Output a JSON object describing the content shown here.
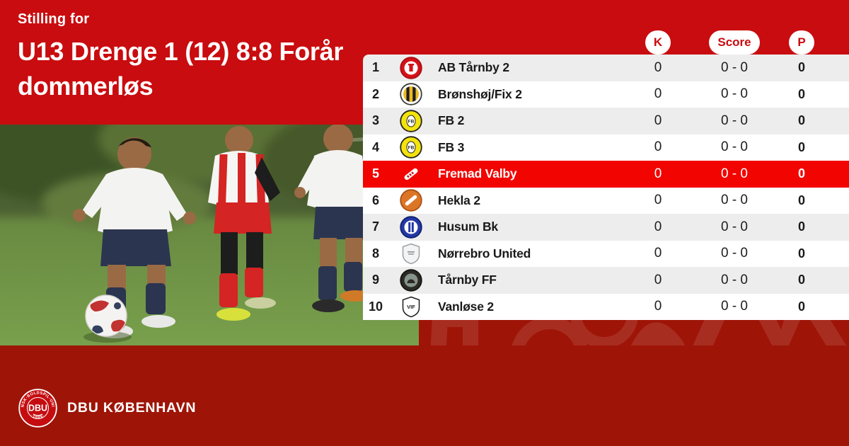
{
  "header": {
    "kicker": "Stilling for",
    "title_line1": "U13 Drenge 1 (12) 8:8 Forår",
    "title_line2": "dommerløs"
  },
  "colors": {
    "brand_red": "#c90c0f",
    "highlight_red": "#f20400",
    "dark_red": "#9e1507",
    "row_alt_gray": "#ededee",
    "pill_text_red": "#c90c0f"
  },
  "standings": {
    "columns": [
      {
        "key": "k",
        "label": "K"
      },
      {
        "key": "score",
        "label": "Score"
      },
      {
        "key": "p",
        "label": "P"
      }
    ],
    "rows": [
      {
        "position": "1",
        "team": "AB Tårnby 2",
        "k": "0",
        "score": "0 - 0",
        "p": "0",
        "highlighted": false,
        "logo": {
          "icon": "ab-taarnby-crest",
          "kind": "circle",
          "bg": "#d41219",
          "ring": "#a80d12",
          "inner": "#ffffff",
          "glyph": "castle",
          "glyphColor": "#d41219"
        }
      },
      {
        "position": "2",
        "team": "Brønshøj/Fix 2",
        "k": "0",
        "score": "0 - 0",
        "p": "0",
        "highlighted": false,
        "logo": {
          "icon": "broenshoej-crest",
          "kind": "stripes",
          "bg": "#ffffff",
          "ring": "#3a3a38",
          "c1": "#efb91e",
          "c2": "#1d1d1b"
        }
      },
      {
        "position": "3",
        "team": "FB 2",
        "k": "0",
        "score": "0 - 0",
        "p": "0",
        "highlighted": false,
        "logo": {
          "icon": "fb-crest",
          "kind": "circle",
          "bg": "#f2e30c",
          "ring": "#26231c",
          "glyph": "oval",
          "text": "FB",
          "textColor": "#26231c"
        }
      },
      {
        "position": "4",
        "team": "FB 3",
        "k": "0",
        "score": "0 - 0",
        "p": "0",
        "highlighted": false,
        "logo": {
          "icon": "fb-crest",
          "kind": "circle",
          "bg": "#f2e30c",
          "ring": "#26231c",
          "glyph": "oval",
          "text": "FB",
          "textColor": "#26231c"
        }
      },
      {
        "position": "5",
        "team": "Fremad Valby",
        "k": "0",
        "score": "0 - 0",
        "p": "0",
        "highlighted": true,
        "logo": {
          "icon": "fremad-valby-crest",
          "kind": "diag",
          "bg": "#ffffff",
          "mark": "#d41219"
        }
      },
      {
        "position": "6",
        "team": "Hekla 2",
        "k": "0",
        "score": "0 - 0",
        "p": "0",
        "highlighted": false,
        "logo": {
          "icon": "hekla-crest",
          "kind": "circle",
          "bg": "#dc7627",
          "ring": "#a94f12",
          "glyph": "diagbar",
          "glyphColor": "#ffffff"
        }
      },
      {
        "position": "7",
        "team": "Husum Bk",
        "k": "0",
        "score": "0 - 0",
        "p": "0",
        "highlighted": false,
        "logo": {
          "icon": "husum-crest",
          "kind": "circle",
          "bg": "#2438a6",
          "ring": "#101f6e",
          "inner": "#ffffff",
          "glyph": "bars",
          "glyphColor": "#2438a6"
        }
      },
      {
        "position": "8",
        "team": "Nørrebro United",
        "k": "0",
        "score": "0 - 0",
        "p": "0",
        "highlighted": false,
        "logo": {
          "icon": "noerrebro-united-crest",
          "kind": "shield",
          "bg": "#f4f4f4",
          "ring": "#9aa0a3",
          "glyph": "lines",
          "glyphColor": "#8b9194"
        }
      },
      {
        "position": "9",
        "team": "Tårnby FF",
        "k": "0",
        "score": "0 - 0",
        "p": "0",
        "highlighted": false,
        "logo": {
          "icon": "taarnby-ff-crest",
          "kind": "circle",
          "bg": "#2c2a24",
          "ring": "#15140f",
          "inner": "#86948c",
          "glyph": "dome",
          "glyphColor": "#2c2a24"
        }
      },
      {
        "position": "10",
        "team": "Vanløse 2",
        "k": "0",
        "score": "0 - 0",
        "p": "0",
        "highlighted": false,
        "logo": {
          "icon": "vanloese-crest",
          "kind": "shield",
          "bg": "#ffffff",
          "ring": "#1c1c1c",
          "text": "VIF",
          "textColor": "#1c1c1c"
        }
      }
    ]
  },
  "footer": {
    "brand": "DBU KØBENHAVN",
    "logo_ring_text": "DANSK·BOLDSPIL·UNION",
    "logo_center_text": "DBU",
    "logo_year_text": "·1889·"
  }
}
